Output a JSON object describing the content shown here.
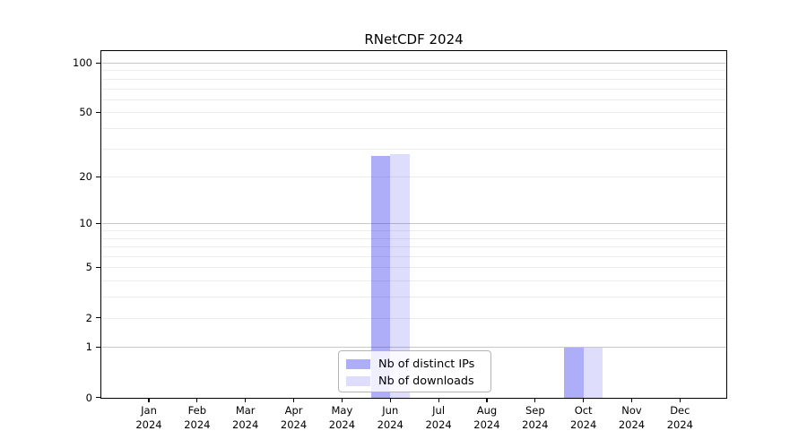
{
  "title": "RNetCDF 2024",
  "chart_data": {
    "type": "bar",
    "title": "RNetCDF 2024",
    "scale": "log1p",
    "grid": true,
    "legend_position": "lower center",
    "categories": [
      "Jan 2024",
      "Feb 2024",
      "Mar 2024",
      "Apr 2024",
      "May 2024",
      "Jun 2024",
      "Jul 2024",
      "Aug 2024",
      "Sep 2024",
      "Oct 2024",
      "Nov 2024",
      "Dec 2024"
    ],
    "x_tick_lines": [
      {
        "month": "Jan",
        "year": "2024"
      },
      {
        "month": "Feb",
        "year": "2024"
      },
      {
        "month": "Mar",
        "year": "2024"
      },
      {
        "month": "Apr",
        "year": "2024"
      },
      {
        "month": "May",
        "year": "2024"
      },
      {
        "month": "Jun",
        "year": "2024"
      },
      {
        "month": "Jul",
        "year": "2024"
      },
      {
        "month": "Aug",
        "year": "2024"
      },
      {
        "month": "Sep",
        "year": "2024"
      },
      {
        "month": "Oct",
        "year": "2024"
      },
      {
        "month": "Nov",
        "year": "2024"
      },
      {
        "month": "Dec",
        "year": "2024"
      }
    ],
    "y_ticks": [
      0,
      1,
      2,
      5,
      10,
      20,
      50,
      100
    ],
    "ylim": [
      0,
      117
    ],
    "major_gridlines": [
      1,
      10,
      100
    ],
    "minor_gridlines": [
      2,
      3,
      4,
      5,
      6,
      7,
      8,
      9,
      20,
      30,
      40,
      50,
      60,
      70,
      80,
      90
    ],
    "series": [
      {
        "name": "Nb of distinct IPs",
        "color": "rgba(20,20,235,0.35)",
        "values": [
          0,
          0,
          0,
          0,
          0,
          27,
          0,
          0,
          0,
          1,
          0,
          0
        ]
      },
      {
        "name": "Nb of downloads",
        "color": "rgba(20,20,235,0.14)",
        "values": [
          0,
          0,
          0,
          0,
          0,
          28,
          0,
          0,
          0,
          1,
          0,
          0
        ]
      }
    ],
    "colors": {
      "major_grid": "#c8c8c8",
      "minor_grid": "#ededed",
      "axis": "#000000",
      "legend_border": "#b4b4b4"
    }
  }
}
